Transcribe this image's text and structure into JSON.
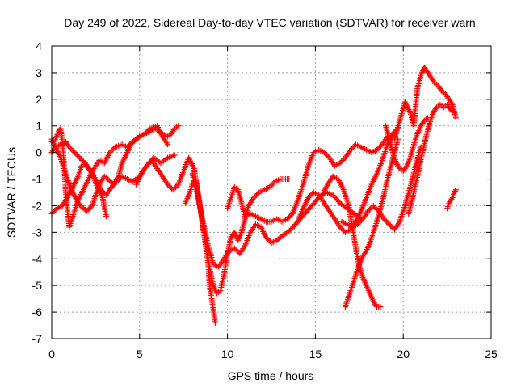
{
  "chart_data": {
    "type": "scatter",
    "title": "Day 249 of 2022, Sidereal Day-to-day VTEC variation (SDTVAR) for receiver warn",
    "xlabel": "GPS time / hours",
    "ylabel": "SDTVAR / TECUs",
    "xlim": [
      0,
      25
    ],
    "ylim": [
      -7,
      4
    ],
    "x_ticks": [
      0,
      5,
      10,
      15,
      20,
      25
    ],
    "y_ticks": [
      -7,
      -6,
      -5,
      -4,
      -3,
      -2,
      -1,
      0,
      1,
      2,
      3,
      4
    ],
    "grid": true,
    "marker": "+",
    "color": "#ff0000",
    "series": [
      {
        "x": [
          0.0,
          0.3,
          0.5,
          0.7,
          0.9,
          1.2,
          1.5,
          1.8,
          2.0,
          2.3,
          2.5,
          2.8,
          3.0,
          3.2,
          3.5,
          3.8,
          4.0,
          4.3,
          4.5,
          4.8,
          5.0,
          5.3,
          5.6,
          5.9,
          6.1,
          6.3,
          6.6,
          6.8,
          7.0,
          7.2
        ],
        "y": [
          0.5,
          0.1,
          -0.2,
          -0.6,
          -1.0,
          -1.5,
          -1.9,
          -2.1,
          -2.2,
          -2.0,
          -1.6,
          -1.1,
          -0.9,
          -1.0,
          -1.2,
          -0.9,
          -0.4,
          0.0,
          0.3,
          0.5,
          0.6,
          0.7,
          0.8,
          0.9,
          0.8,
          0.7,
          0.6,
          0.7,
          0.9,
          1.0
        ]
      },
      {
        "x": [
          0.0,
          0.2,
          0.4,
          0.5,
          0.6,
          0.7,
          0.8,
          0.9,
          1.0,
          1.2,
          1.5,
          1.8,
          2.1,
          2.4,
          2.7,
          3.0,
          3.3,
          3.6,
          4.0,
          4.3,
          4.6,
          5.0,
          5.3,
          5.6,
          6.0,
          6.3,
          6.6
        ],
        "y": [
          0.4,
          0.5,
          0.8,
          0.9,
          0.5,
          -0.4,
          -1.5,
          -2.2,
          -2.8,
          -2.4,
          -1.8,
          -1.4,
          -1.0,
          -0.6,
          -0.3,
          -0.4,
          0.0,
          0.2,
          0.3,
          0.2,
          0.4,
          0.6,
          0.7,
          0.9,
          1.0,
          0.6,
          0.3
        ]
      },
      {
        "x": [
          0.0,
          0.3,
          0.6,
          0.9,
          1.2,
          1.5,
          1.7,
          1.9,
          2.2,
          2.5,
          2.8,
          3.1,
          3.4,
          3.7,
          4.0,
          4.3,
          4.6,
          5.0,
          5.4,
          5.8,
          6.2,
          6.6,
          7.0
        ],
        "y": [
          -2.3,
          -2.1,
          -2.0,
          -1.7,
          -1.3,
          -0.9,
          -0.5,
          -0.4,
          -0.7,
          -1.0,
          -1.4,
          -1.6,
          -1.3,
          -1.1,
          -0.9,
          -1.0,
          -1.1,
          -0.9,
          -0.5,
          -0.2,
          -0.4,
          -0.2,
          -0.1
        ]
      },
      {
        "x": [
          0.0,
          0.2,
          0.5,
          0.8,
          1.0,
          1.3,
          1.6,
          2.0,
          2.3,
          2.6,
          2.9,
          3.1
        ],
        "y": [
          0.0,
          0.2,
          0.3,
          0.4,
          0.2,
          0.0,
          -0.2,
          -0.5,
          -0.8,
          -1.3,
          -1.7,
          -2.4
        ]
      },
      {
        "x": [
          4.8,
          5.1,
          5.4,
          5.7,
          6.0,
          6.3,
          6.6,
          6.9,
          7.2,
          7.5,
          7.8,
          8.1,
          8.3,
          8.5,
          8.7,
          8.9,
          9.0,
          9.2,
          9.3
        ],
        "y": [
          -1.2,
          -0.8,
          -0.5,
          -0.3,
          -0.6,
          -0.9,
          -1.2,
          -1.4,
          -1.2,
          -0.7,
          -0.2,
          -0.6,
          -1.5,
          -2.3,
          -3.2,
          -4.2,
          -5.1,
          -5.9,
          -6.4
        ]
      },
      {
        "x": [
          7.6,
          7.8,
          8.0,
          8.2,
          8.4,
          8.6,
          8.8,
          9.0,
          9.2,
          9.4,
          9.6,
          9.8,
          10.0,
          10.2,
          10.4,
          10.6,
          10.8,
          11.0,
          11.2,
          11.5,
          11.8,
          12.1,
          12.4,
          12.7,
          13.0,
          13.3,
          13.5
        ],
        "y": [
          -1.9,
          -1.6,
          -1.2,
          -1.0,
          -1.8,
          -2.8,
          -3.6,
          -4.4,
          -5.0,
          -5.3,
          -5.2,
          -4.6,
          -3.8,
          -3.2,
          -3.0,
          -3.3,
          -3.0,
          -2.5,
          -2.0,
          -1.7,
          -1.5,
          -1.4,
          -1.3,
          -1.1,
          -1.0,
          -1.0,
          -1.0
        ]
      },
      {
        "x": [
          8.0,
          8.3,
          8.6,
          8.9,
          9.2,
          9.5,
          9.8,
          10.1,
          10.4,
          10.7,
          11.0,
          11.3,
          11.6,
          11.9,
          12.2,
          12.5,
          12.8,
          13.2,
          13.6,
          14.0,
          14.4,
          14.8,
          15.2,
          15.6,
          16.0,
          16.4,
          16.8,
          17.2,
          17.6
        ],
        "y": [
          -0.8,
          -1.6,
          -2.6,
          -3.5,
          -4.2,
          -4.3,
          -4.0,
          -3.7,
          -3.6,
          -3.8,
          -3.5,
          -3.0,
          -2.7,
          -2.8,
          -3.2,
          -3.4,
          -3.3,
          -3.1,
          -2.9,
          -2.6,
          -2.3,
          -2.0,
          -1.7,
          -1.5,
          -1.6,
          -1.9,
          -2.1,
          -2.3,
          -2.5
        ]
      },
      {
        "x": [
          10.0,
          10.2,
          10.4,
          10.6,
          10.8,
          11.0,
          11.3,
          11.6,
          11.9,
          12.2,
          12.5,
          12.8,
          13.1,
          13.4,
          13.7,
          14.0,
          14.3,
          14.6,
          14.9,
          15.2,
          15.5,
          15.8,
          16.1,
          16.4,
          16.7,
          17.0,
          17.3,
          17.6,
          17.9,
          18.2,
          18.5,
          18.8,
          19.1
        ],
        "y": [
          -2.1,
          -1.7,
          -1.3,
          -1.4,
          -1.9,
          -2.4,
          -2.3,
          -2.4,
          -2.5,
          -2.6,
          -2.6,
          -2.5,
          -2.6,
          -2.5,
          -2.3,
          -1.8,
          -1.2,
          -0.5,
          0.0,
          0.1,
          0.0,
          -0.2,
          -0.5,
          -0.4,
          -0.2,
          0.1,
          0.3,
          0.2,
          0.1,
          0.0,
          0.1,
          0.3,
          0.6
        ]
      },
      {
        "x": [
          14.0,
          14.3,
          14.6,
          14.9,
          15.2,
          15.5,
          15.8,
          16.1,
          16.4,
          16.7,
          17.0,
          17.3,
          17.6,
          17.9,
          18.2,
          18.5,
          18.8,
          19.1,
          19.4,
          19.7
        ],
        "y": [
          -2.6,
          -2.1,
          -1.7,
          -1.5,
          -1.6,
          -1.9,
          -2.2,
          -2.5,
          -2.8,
          -3.0,
          -2.9,
          -2.6,
          -2.2,
          -1.7,
          -1.2,
          -0.8,
          -0.3,
          0.3,
          0.7,
          0.9
        ]
      },
      {
        "x": [
          15.4,
          15.7,
          16.0,
          16.3,
          16.6,
          16.9,
          17.1,
          17.3,
          17.5,
          17.7,
          17.9,
          18.1,
          18.3,
          18.5,
          18.7
        ],
        "y": [
          -1.6,
          -1.2,
          -0.9,
          -1.0,
          -1.4,
          -2.0,
          -2.8,
          -3.6,
          -4.3,
          -4.7,
          -5.0,
          -5.3,
          -5.6,
          -5.8,
          -5.8
        ]
      },
      {
        "x": [
          16.7,
          16.9,
          17.1,
          17.3,
          17.5,
          17.7,
          17.9,
          18.1,
          18.3,
          18.5,
          18.7,
          18.9,
          19.1,
          19.3,
          19.5,
          19.7
        ],
        "y": [
          -5.8,
          -5.4,
          -5.0,
          -4.6,
          -4.2,
          -3.9,
          -3.7,
          -3.4,
          -3.0,
          -2.6,
          -2.1,
          -1.6,
          -1.0,
          -0.5,
          0.0,
          0.5
        ]
      },
      {
        "x": [
          16.5,
          16.8,
          17.1,
          17.4,
          17.7,
          18.0,
          18.3,
          18.6,
          18.9,
          19.2,
          19.5,
          19.8,
          20.1,
          20.4,
          20.7,
          21.0
        ],
        "y": [
          -2.6,
          -2.7,
          -2.8,
          -2.7,
          -2.5,
          -2.2,
          -2.0,
          -2.2,
          -2.5,
          -2.7,
          -2.9,
          -2.6,
          -2.0,
          -1.3,
          -0.5,
          0.2
        ]
      },
      {
        "x": [
          19.5,
          19.8,
          20.1,
          20.4,
          20.6,
          20.8,
          21.0,
          21.2,
          21.4,
          21.6,
          21.8,
          22.0,
          22.2,
          22.4,
          22.6,
          22.8,
          23.0
        ],
        "y": [
          0.5,
          1.2,
          1.9,
          1.5,
          1.0,
          2.4,
          2.9,
          3.2,
          3.0,
          2.8,
          2.6,
          2.5,
          2.3,
          2.2,
          2.0,
          1.8,
          1.3
        ]
      },
      {
        "x": [
          20.3,
          20.5,
          20.7,
          20.9,
          21.1,
          21.3,
          21.5,
          21.7,
          21.9,
          22.1,
          22.3,
          22.5,
          22.7,
          22.9
        ],
        "y": [
          -2.3,
          -1.8,
          -1.2,
          -0.6,
          0.0,
          0.6,
          1.1,
          1.5,
          1.7,
          1.8,
          1.7,
          1.8,
          1.6,
          1.5
        ]
      },
      {
        "x": [
          19.0,
          19.2,
          19.4,
          19.6,
          19.8,
          20.0,
          20.2,
          20.4,
          20.6,
          20.8,
          21.0,
          21.2,
          21.4
        ],
        "y": [
          1.0,
          0.5,
          0.0,
          -0.4,
          -0.6,
          -0.7,
          -0.5,
          -0.2,
          0.3,
          0.7,
          1.0,
          1.2,
          1.3
        ]
      },
      {
        "x": [
          22.5,
          22.6,
          22.7,
          22.8,
          22.9,
          23.0
        ],
        "y": [
          -2.1,
          -1.9,
          -1.8,
          -1.7,
          -1.5,
          -1.4
        ]
      }
    ]
  }
}
